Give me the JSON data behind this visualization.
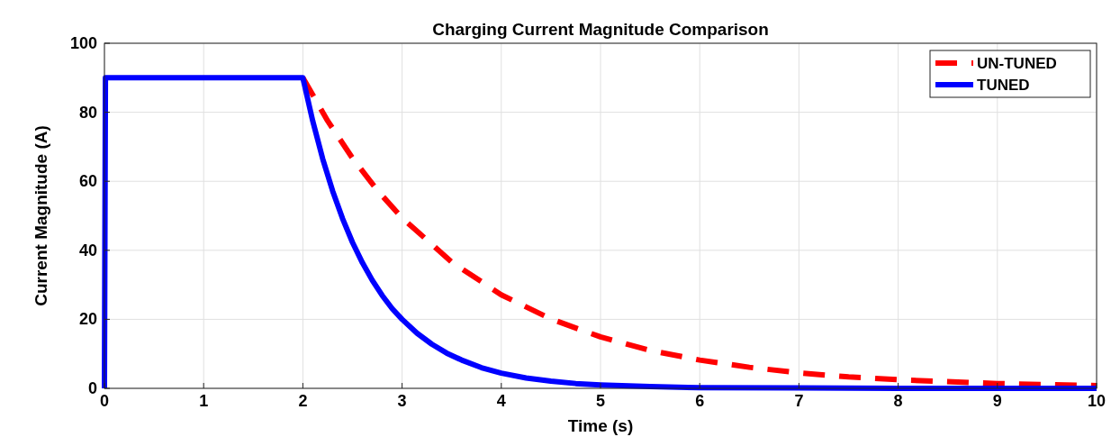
{
  "chart_data": {
    "type": "line",
    "title": "Charging Current Magnitude Comparison",
    "xlabel": "Time (s)",
    "ylabel": "Current Magnitude (A)",
    "xlim": [
      0,
      10
    ],
    "xticks": [
      0,
      1,
      2,
      3,
      4,
      5,
      6,
      7,
      8,
      9,
      10
    ],
    "ylim": [
      0,
      100
    ],
    "yticks": [
      0,
      20,
      40,
      60,
      80,
      100
    ],
    "grid": true,
    "legend": "top right",
    "series": [
      {
        "name": "UN-TUNED",
        "color": "#ff0000",
        "line_style": "dashed",
        "x": [
          2,
          2.25,
          2.5,
          2.75,
          3,
          3.5,
          4,
          4.5,
          5,
          5.5,
          6,
          6.5,
          7,
          7.5,
          8,
          9,
          10
        ],
        "values": [
          90,
          77.5,
          66.7,
          57.4,
          49.4,
          36.6,
          27.1,
          20.1,
          14.9,
          11,
          8.2,
          6.1,
          4.5,
          3.3,
          2.5,
          1.4,
          0.8
        ]
      },
      {
        "name": "TUNED",
        "color": "#0000ff",
        "line_style": "solid",
        "x": [
          0,
          0.01,
          2,
          2.1,
          2.2,
          2.3,
          2.4,
          2.5,
          2.6,
          2.7,
          2.8,
          2.9,
          3,
          3.15,
          3.3,
          3.45,
          3.6,
          3.8,
          4,
          4.25,
          4.5,
          4.75,
          5,
          5.5,
          6,
          7,
          8,
          10
        ],
        "values": [
          0,
          90,
          90,
          77.4,
          66.5,
          57.2,
          49.2,
          42.3,
          36.4,
          31.3,
          26.9,
          23.1,
          20,
          16.0,
          12.8,
          10.2,
          8.2,
          6.0,
          4.4,
          3.0,
          2.1,
          1.4,
          1,
          0.5,
          0.2,
          0.1,
          0,
          0
        ]
      }
    ]
  }
}
